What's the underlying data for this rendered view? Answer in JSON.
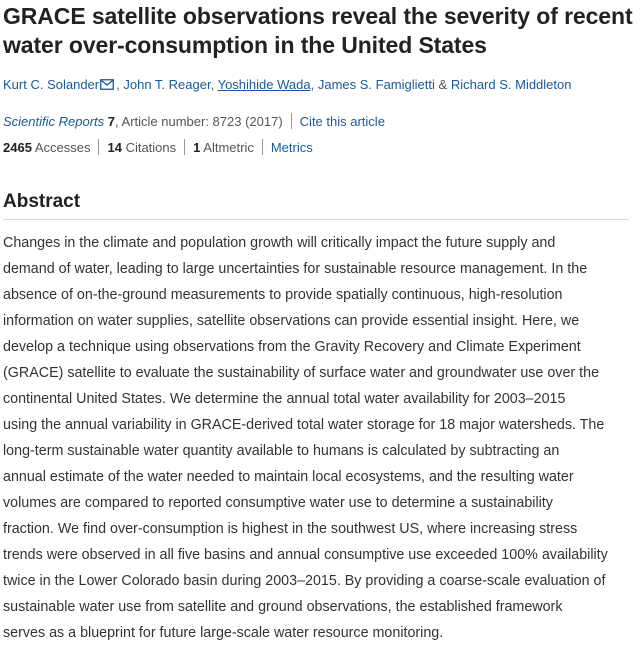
{
  "article": {
    "title": "GRACE satellite observations reveal the severity of recent water over-consumption in the United States",
    "authors": [
      {
        "name": "Kurt C. Solander",
        "has_mail_icon": true
      },
      {
        "name": "John T. Reager"
      },
      {
        "name": "Yoshihide Wada"
      },
      {
        "name": "James S. Famiglietti"
      },
      {
        "name": "Richard S. Middleton"
      }
    ],
    "separators": {
      "comma": ",",
      "ampersand": "&"
    },
    "journal": "Scientific Reports",
    "volume": "7",
    "article_number_text": ", Article number: 8723 (2017)",
    "cite_link": "Cite this article",
    "metrics": {
      "accesses_value": "2465",
      "accesses_label": "Accesses",
      "citations_value": "14",
      "citations_label": "Citations",
      "altmetric_value": "1",
      "altmetric_label": "Altmetric",
      "metrics_link": "Metrics"
    }
  },
  "abstract": {
    "heading": "Abstract",
    "lines": [
      "Changes in the climate and population growth will critically impact the future supply and",
      "demand of water, leading to large uncertainties for sustainable resource management. In the",
      "absence of on-the-ground measurements to provide spatially continuous, high-resolution",
      "information on water supplies, satellite observations can provide essential insight. Here, we",
      "develop a technique using observations from the Gravity Recovery and Climate Experiment",
      "(GRACE) satellite to evaluate the sustainability of surface water and groundwater use over the",
      "continental United States. We determine the annual total water availability for 2003–2015",
      "using the annual variability in GRACE-derived total water storage for 18 major watersheds. The",
      "long-term sustainable water quantity available to humans is calculated by subtracting an",
      "annual estimate of the water needed to maintain local ecosystems, and the resulting water",
      "volumes are compared to reported consumptive water use to determine a sustainability",
      "fraction. We find over-consumption is highest in the southwest US, where increasing stress",
      "trends were observed in all five basins and annual consumptive use exceeded 100% availability",
      "twice in the Lower Colorado basin during 2003–2015. By providing a coarse-scale evaluation of",
      "sustainable water use from satellite and ground observations, the established framework",
      "serves as a blueprint for future large-scale water resource monitoring."
    ]
  },
  "icons": {
    "mail": "mail-icon"
  },
  "colors": {
    "link": "#1a5a96",
    "text": "#222222",
    "muted": "#555555",
    "rule": "#d5d5d5"
  }
}
